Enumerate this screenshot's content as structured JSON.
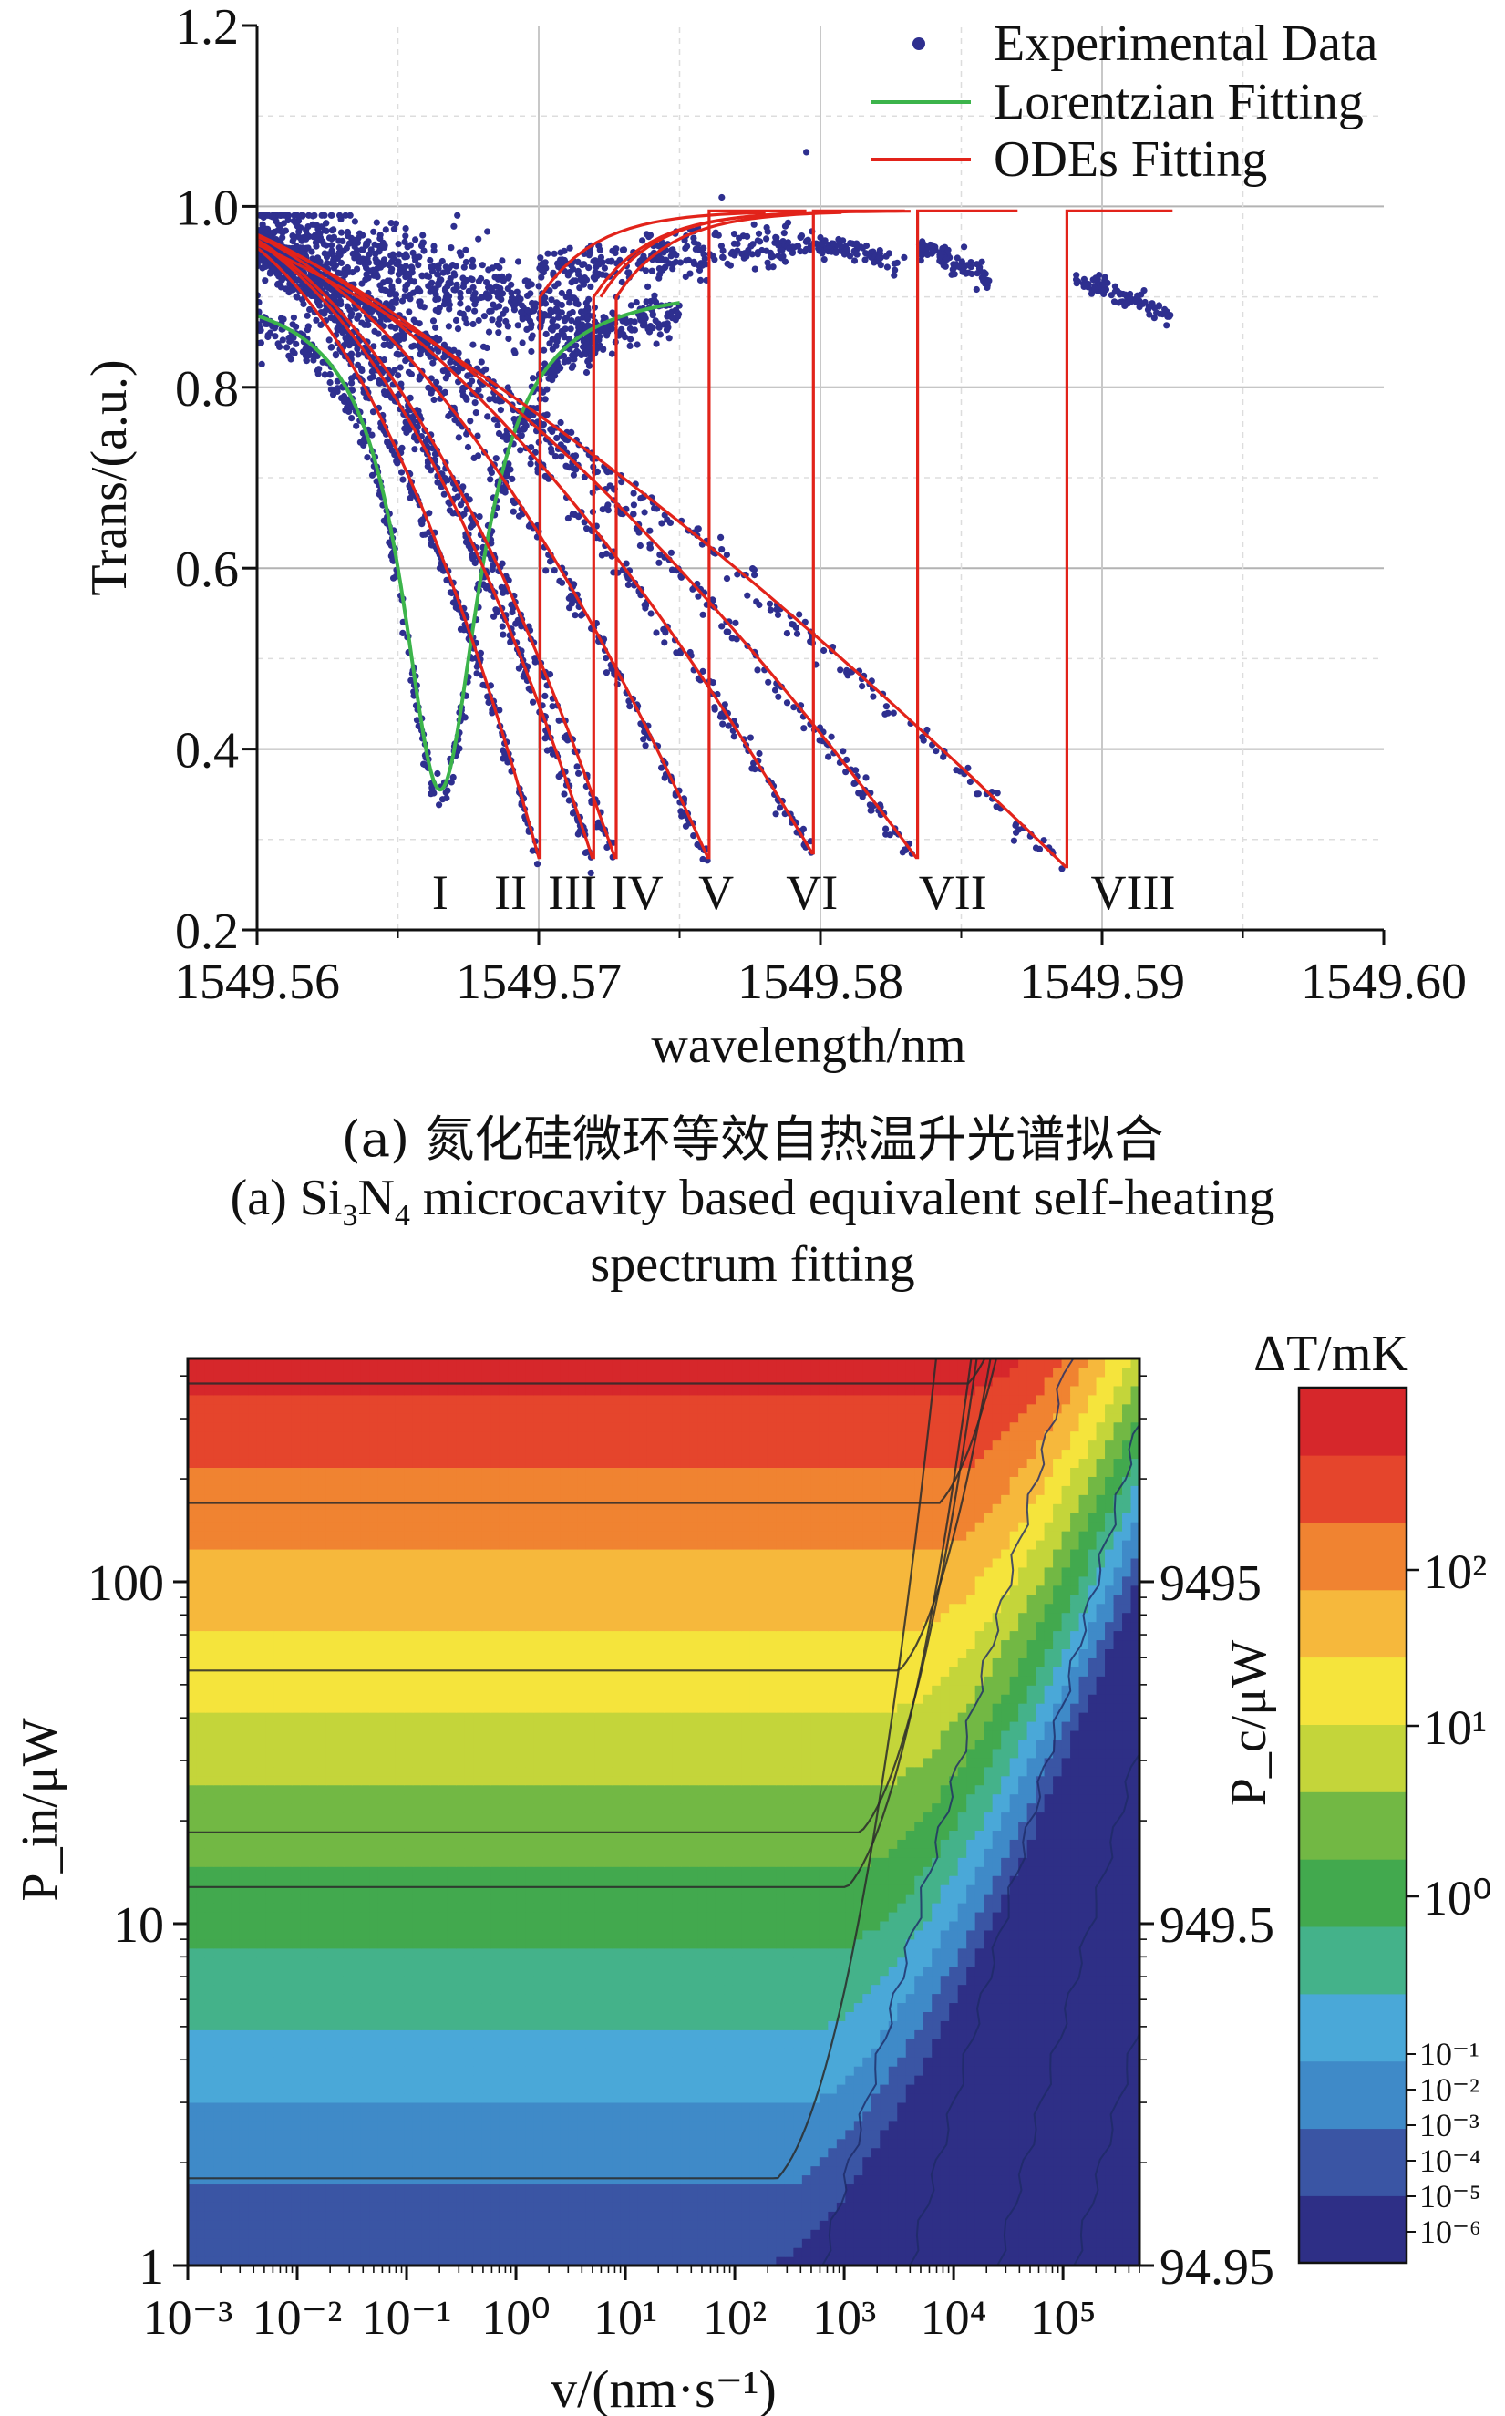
{
  "chart_data": [
    {
      "type": "scatter",
      "panel": "a",
      "xlabel": "wavelength/nm",
      "ylabel": "Trans/(a.u.)",
      "xlim": [
        1549.56,
        1549.6
      ],
      "ylim": [
        0.2,
        1.2
      ],
      "xticks": [
        1549.56,
        1549.57,
        1549.58,
        1549.59,
        1549.6
      ],
      "xtick_labels": [
        "1549.56",
        "1549.57",
        "1549.58",
        "1549.59",
        "1549.60"
      ],
      "yticks": [
        0.2,
        0.4,
        0.6,
        0.8,
        1.0,
        1.2
      ],
      "ytick_labels": [
        "0.2",
        "0.4",
        "0.6",
        "0.8",
        "1.0",
        "1.2"
      ],
      "grid": true,
      "legend_position": "top-right",
      "legend": [
        {
          "label": "Experimental Data",
          "kind": "points",
          "color": "#2e2f8f"
        },
        {
          "label": "Lorentzian Fitting",
          "kind": "line",
          "color": "#3cb44b"
        },
        {
          "label": "ODEs Fitting",
          "kind": "line",
          "color": "#e2231a"
        }
      ],
      "lorentzian": {
        "center": 1549.5665,
        "min": 0.355,
        "baseline": 0.915,
        "halfwidth": 0.0017,
        "x_range": [
          1549.56,
          1549.575
        ]
      },
      "dips": [
        {
          "label": "I",
          "x_label": 1549.5665,
          "dip_x": 1549.5665,
          "dip_y": 0.355
        },
        {
          "label": "II",
          "x_label": 1549.569,
          "dip_x": 1549.57,
          "dip_y": 0.28
        },
        {
          "label": "III",
          "x_label": 1549.5712,
          "dip_x": 1549.5719,
          "dip_y": 0.28
        },
        {
          "label": "IV",
          "x_label": 1549.5735,
          "dip_x": 1549.5727,
          "dip_y": 0.28
        },
        {
          "label": "V",
          "x_label": 1549.5763,
          "dip_x": 1549.576,
          "dip_y": 0.28
        },
        {
          "label": "VI",
          "x_label": 1549.5797,
          "dip_x": 1549.5797,
          "dip_y": 0.285
        },
        {
          "label": "VII",
          "x_label": 1549.5847,
          "dip_x": 1549.5834,
          "dip_y": 0.28
        },
        {
          "label": "VIII",
          "x_label": 1549.5911,
          "dip_x": 1549.5887,
          "dip_y": 0.27
        }
      ],
      "recovery_level": 0.995,
      "data_plateau": [
        {
          "x": [
            1549.5795,
            1549.583
          ],
          "y": [
            0.96,
            0.94
          ]
        },
        {
          "x": [
            1549.5835,
            1549.586
          ],
          "y": [
            0.955,
            0.92
          ]
        },
        {
          "x": [
            1549.589,
            1549.5925
          ],
          "y": [
            0.92,
            0.88
          ]
        }
      ]
    },
    {
      "type": "heatmap",
      "panel": "b",
      "xlabel": "v/(nm·s⁻¹)",
      "ylabel_left": "P_in/μW",
      "ylabel_right": "P_c/μW",
      "x_scale": "log",
      "y_scale": "log",
      "xlim": [
        0.001,
        500000
      ],
      "ylim": [
        1,
        450
      ],
      "xtick_labels": [
        "10⁻³",
        "10⁻²",
        "10⁻¹",
        "10⁰",
        "10¹",
        "10²",
        "10³",
        "10⁴",
        "10⁵"
      ],
      "xtick_values": [
        0.001,
        0.01,
        0.1,
        1,
        10,
        100,
        1000,
        10000,
        100000
      ],
      "ytick_left_labels": [
        "1",
        "10",
        "100"
      ],
      "ytick_left_values": [
        1,
        10,
        100
      ],
      "ytick_right_labels": [
        "94.95",
        "949.5",
        "9495"
      ],
      "colorbar_title": "ΔT/mK",
      "colorbar_tick_labels_major": [
        "10²",
        "10¹",
        "10⁰"
      ],
      "colorbar_tick_labels_minor": [
        "10⁻¹",
        "10⁻²",
        "10⁻³",
        "10⁻⁴",
        "10⁻⁵",
        "10⁻⁶"
      ],
      "contour_plateau_levels_uW": [
        1.8,
        12.8,
        18.5,
        55,
        170,
        380
      ],
      "colors": [
        "#2e2f86",
        "#3a55a4",
        "#3f8ac8",
        "#4aa8d8",
        "#44b28a",
        "#42a94e",
        "#72b844",
        "#c4d53a",
        "#f5e43c",
        "#f6b83c",
        "#f08331",
        "#e5452c",
        "#d6272b"
      ]
    }
  ],
  "captions": {
    "zh": "(a) 氮化硅微环等效自热温升光谱拟合",
    "en_line1_prefix": "(a) Si",
    "en_line1_sub1": "3",
    "en_line1_mid": "N",
    "en_line1_sub2": "4",
    "en_line1_suffix": " microcavity based equivalent self-heating",
    "en_line2": "spectrum fitting"
  }
}
